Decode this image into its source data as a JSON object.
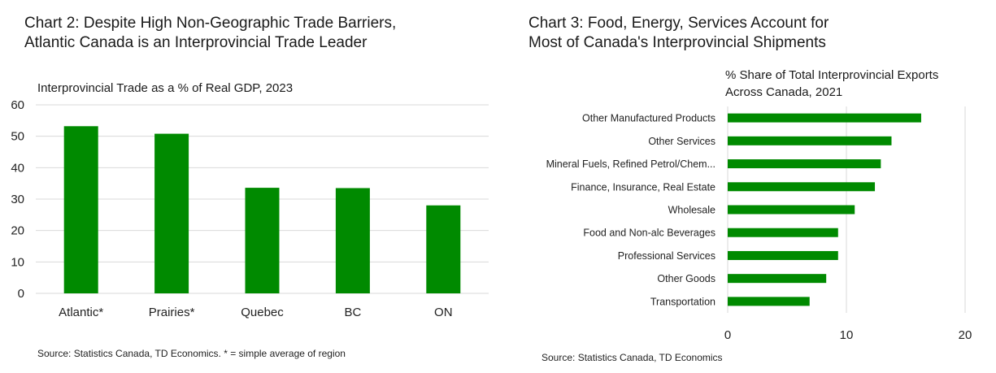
{
  "chart_data": [
    {
      "type": "bar",
      "title": [
        "Chart 2: Despite High Non-Geographic Trade Barriers,",
        "Atlantic Canada is an Interprovincial Trade Leader"
      ],
      "subtitle": "Interprovincial Trade as a % of Real GDP, 2023",
      "categories": [
        "Atlantic*",
        "Prairies*",
        "Quebec",
        "BC",
        "ON"
      ],
      "values": [
        53.2,
        50.8,
        33.6,
        33.5,
        28.0
      ],
      "ylim": [
        0,
        60
      ],
      "yticks": [
        "0",
        "10",
        "20",
        "30",
        "40",
        "50",
        "60"
      ],
      "grid": true,
      "color": "#008a00",
      "source": "Source: Statistics Canada, TD Economics. * = simple average of region"
    },
    {
      "type": "bar",
      "orientation": "horizontal",
      "title": [
        "Chart 3: Food, Energy, Services Account for",
        "Most of Canada's Interprovincial Shipments"
      ],
      "subtitle": [
        "% Share of Total Interprovincial Exports",
        "Across Canada, 2021"
      ],
      "categories": [
        "Other Manufactured Products",
        "Other Services",
        "Mineral Fuels, Refined Petrol/Chem...",
        "Finance, Insurance, Real Estate",
        "Wholesale",
        "Food and Non-alc Beverages",
        "Professional Services",
        "Other Goods",
        "Transportation"
      ],
      "values": [
        16.3,
        13.8,
        12.9,
        12.4,
        10.7,
        9.3,
        9.3,
        8.3,
        6.9
      ],
      "xlim": [
        0,
        20
      ],
      "xticks": [
        "0",
        "10",
        "20"
      ],
      "grid": true,
      "color": "#008a00",
      "source": "Source: Statistics Canada, TD Economics"
    }
  ]
}
